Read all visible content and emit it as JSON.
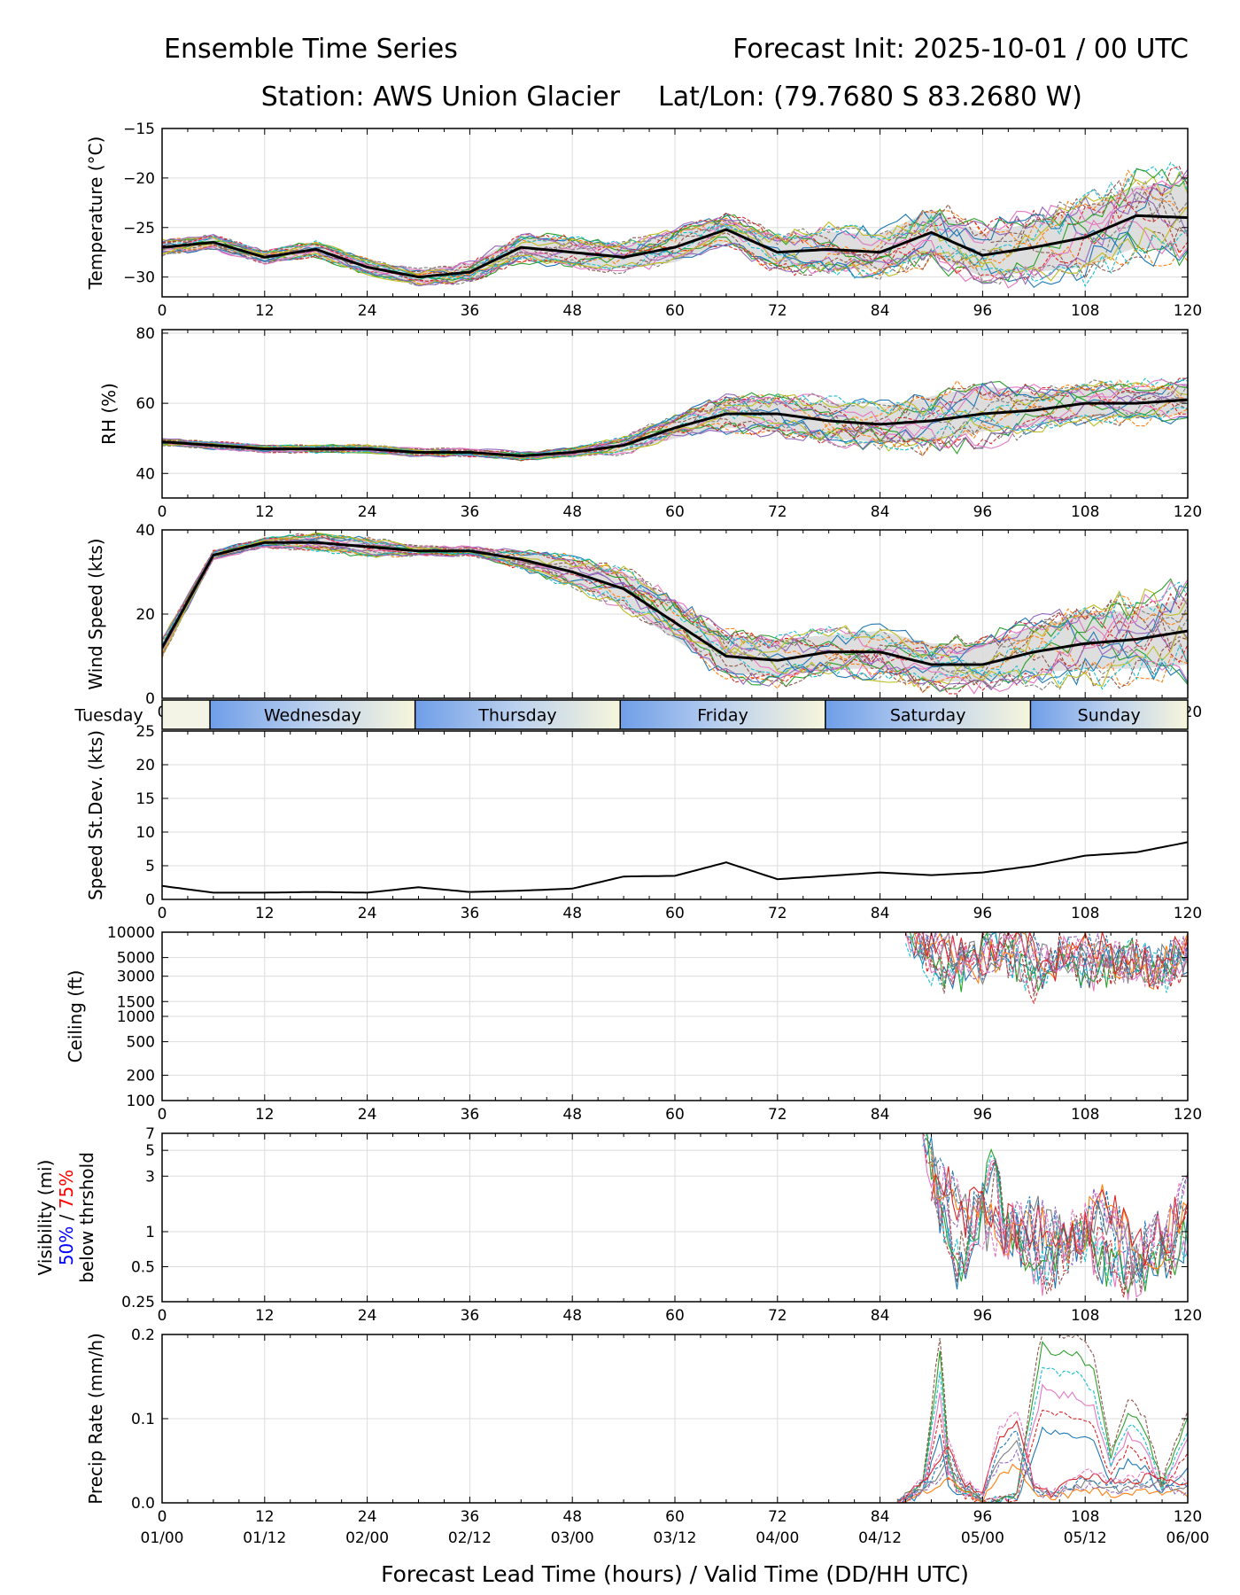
{
  "header": {
    "title_left": "Ensemble Time Series",
    "title_right": "Forecast Init: 2025-10-01 / 00 UTC",
    "station": "Station: AWS Union Glacier",
    "latlon": "Lat/Lon: (79.7680 S 83.2680 W)"
  },
  "chart_data": {
    "type": "line",
    "x": [
      0,
      6,
      12,
      18,
      24,
      30,
      36,
      42,
      48,
      54,
      60,
      66,
      72,
      78,
      84,
      90,
      96,
      102,
      108,
      114,
      120
    ],
    "xlim": [
      0,
      120
    ],
    "x_ticks": [
      0,
      12,
      24,
      36,
      48,
      60,
      72,
      84,
      96,
      108,
      120
    ],
    "valid_time_labels": [
      "01/00",
      "01/12",
      "02/00",
      "02/12",
      "03/00",
      "03/12",
      "04/00",
      "04/12",
      "05/00",
      "05/12",
      "06/00"
    ],
    "xlabel": "Forecast Lead Time (hours) / Valid Time (DD/HH UTC)",
    "day_band": {
      "days": [
        {
          "label": "Tuesday",
          "start": 0,
          "end": 5.6
        },
        {
          "label": "Wednesday",
          "start": 5.6,
          "end": 29.6
        },
        {
          "label": "Thursday",
          "start": 29.6,
          "end": 53.6
        },
        {
          "label": "Friday",
          "start": 53.6,
          "end": 77.6
        },
        {
          "label": "Saturday",
          "start": 77.6,
          "end": 101.6
        },
        {
          "label": "Sunday",
          "start": 101.6,
          "end": 120
        }
      ]
    },
    "panels": [
      {
        "id": "temperature",
        "ylabel": "Temperature (°C)",
        "ylim": [
          -32,
          -15
        ],
        "y_ticks": [
          -15,
          -20,
          -25,
          -30
        ],
        "y_tick_labels": [
          "−15",
          "−20",
          "−25",
          "−30"
        ],
        "mean": [
          -27,
          -26.5,
          -28,
          -27.2,
          -29,
          -30,
          -29.5,
          -27,
          -27.5,
          -28,
          -27,
          -25.2,
          -27.5,
          -27.2,
          -27.5,
          -25.5,
          -27.8,
          -27,
          -26,
          -23.8,
          -24
        ],
        "spread_low": [
          -27.8,
          -27.2,
          -28.6,
          -28,
          -29.7,
          -30.7,
          -30.4,
          -28.2,
          -28.8,
          -29.2,
          -28.5,
          -26.5,
          -29,
          -29,
          -29.3,
          -27.8,
          -30,
          -29.5,
          -29,
          -27,
          -27.5
        ],
        "spread_high": [
          -26.3,
          -25.8,
          -27.4,
          -26.5,
          -28.3,
          -29.3,
          -28.6,
          -25.8,
          -26.2,
          -26.8,
          -25.5,
          -24,
          -26,
          -25.4,
          -25.7,
          -23.2,
          -25.6,
          -24.5,
          -23,
          -20.8,
          -20.5
        ],
        "unit": "°C"
      },
      {
        "id": "rh",
        "ylabel": "RH (%)",
        "ylim": [
          33,
          81
        ],
        "y_ticks": [
          40,
          60,
          80
        ],
        "y_tick_labels": [
          "40",
          "60",
          "80"
        ],
        "mean": [
          49,
          48,
          47,
          47,
          47,
          46,
          46,
          45,
          46,
          48,
          53,
          57,
          57,
          55,
          54,
          55,
          57,
          58,
          60,
          60,
          61
        ],
        "spread_low": [
          48,
          47,
          46,
          46,
          46,
          45,
          45,
          44,
          45,
          46,
          50,
          53,
          52,
          50,
          49,
          49,
          52,
          54,
          56,
          56,
          57
        ],
        "spread_high": [
          50,
          49,
          48,
          48,
          48,
          47,
          47,
          46,
          47,
          50,
          56,
          61,
          61,
          60,
          59,
          62,
          65,
          63,
          64,
          64,
          65
        ],
        "unit": "%"
      },
      {
        "id": "wind",
        "ylabel": "Wind Speed (kts)",
        "ylim": [
          0,
          40
        ],
        "y_ticks": [
          0,
          20,
          40
        ],
        "y_tick_labels": [
          "0",
          "20",
          "40"
        ],
        "mean": [
          12,
          34,
          37,
          37,
          36,
          35,
          35,
          33,
          30,
          26,
          18,
          10,
          9,
          11,
          11,
          8,
          8,
          11,
          13,
          14,
          16
        ],
        "spread_low": [
          10,
          33,
          36,
          35,
          34,
          34,
          34,
          31,
          27,
          22,
          14,
          6,
          5,
          7,
          7,
          4,
          4,
          6,
          7,
          7,
          8
        ],
        "spread_high": [
          14,
          35,
          38,
          39,
          38,
          36,
          36,
          35,
          33,
          30,
          23,
          15,
          14,
          15,
          16,
          13,
          13,
          17,
          20,
          21,
          24
        ],
        "unit": "kts"
      },
      {
        "id": "speed_sd",
        "ylabel": "Speed St.Dev. (kts)",
        "ylim": [
          0,
          25
        ],
        "y_ticks": [
          0,
          5,
          10,
          15,
          20,
          25
        ],
        "y_tick_labels": [
          "0",
          "5",
          "10",
          "15",
          "20",
          "25"
        ],
        "mean": [
          2,
          1,
          1,
          1.1,
          1,
          1.8,
          1.1,
          1.3,
          1.6,
          3.4,
          3.5,
          5.5,
          3,
          3.5,
          4,
          3.6,
          4,
          5,
          6.5,
          7,
          8.5
        ],
        "unit": "kts"
      },
      {
        "id": "ceiling",
        "ylabel": "Ceiling (ft)",
        "scale": "log",
        "ylim": [
          100,
          10000
        ],
        "y_ticks": [
          100,
          200,
          500,
          1000,
          1500,
          3000,
          5000,
          10000
        ],
        "y_tick_labels": [
          "100",
          "200",
          "500",
          "1000",
          "1500",
          "3000",
          "5000",
          "10000"
        ],
        "member_samples": [
          {
            "x": [
              87,
              90,
              93,
              96,
              99,
              102,
              105,
              108,
              111,
              114,
              117,
              120
            ],
            "y": [
              10000,
              4000,
              2500,
              8000,
              5000,
              2500,
              6000,
              3000,
              4000,
              5000,
              3000,
              5000
            ]
          },
          {
            "x": [
              88,
              92,
              96,
              100,
              104,
              108,
              112,
              116,
              120
            ],
            "y": [
              9000,
              6000,
              4000,
              9000,
              3500,
              7000,
              4500,
              3500,
              6000
            ]
          }
        ],
        "unit": "ft"
      },
      {
        "id": "visibility",
        "ylabel": "Visibility (mi)",
        "ylabel_line2_blue": "50%",
        "ylabel_line2_sep": " / ",
        "ylabel_line2_red": "75%",
        "ylabel_line3": "below thrshold",
        "scale": "log",
        "ylim": [
          0.25,
          7
        ],
        "y_ticks": [
          0.25,
          0.5,
          1,
          3,
          5,
          7
        ],
        "y_tick_labels": [
          "0.25",
          "0.5",
          "1",
          "3",
          "5",
          "7"
        ],
        "member_samples": [
          {
            "x": [
              89,
              91,
              93,
              95,
              97,
              99,
              101,
              103,
              105,
              107,
              109,
              111,
              113,
              115,
              117,
              119,
              120
            ],
            "y": [
              7,
              1.5,
              0.5,
              0.8,
              3,
              1,
              0.8,
              0.45,
              0.6,
              0.9,
              0.7,
              0.5,
              0.4,
              0.5,
              0.6,
              0.8,
              1
            ]
          },
          {
            "x": [
              90,
              94,
              98,
              102,
              106,
              110,
              114,
              118,
              120
            ],
            "y": [
              3,
              1.5,
              1,
              1.2,
              0.8,
              1.5,
              0.6,
              1,
              2
            ]
          }
        ],
        "unit": "mi"
      },
      {
        "id": "precip",
        "ylabel": "Precip Rate (mm/h)",
        "ylim": [
          0,
          0.2
        ],
        "y_ticks": [
          0,
          0.1,
          0.2
        ],
        "y_tick_labels": [
          "0.0",
          "0.1",
          "0.2"
        ],
        "member_samples": [
          {
            "x": [
              86,
              89,
              91,
              92,
              93,
              96,
              100,
              103,
              105,
              107,
              109,
              111,
              113,
              115,
              117,
              120
            ],
            "y": [
              0,
              0.02,
              0.16,
              0.05,
              0.02,
              0,
              0.01,
              0.17,
              0.16,
              0.16,
              0.14,
              0.05,
              0.1,
              0.08,
              0.02,
              0.09
            ]
          },
          {
            "x": [
              86,
              90,
              92,
              94,
              96,
              98,
              100,
              102,
              104,
              108,
              112,
              116,
              120
            ],
            "y": [
              0,
              0.03,
              0.06,
              0.02,
              0.01,
              0.07,
              0.09,
              0.02,
              0.01,
              0.03,
              0.02,
              0.03,
              0.02
            ]
          }
        ],
        "unit": "mm/h"
      }
    ]
  }
}
